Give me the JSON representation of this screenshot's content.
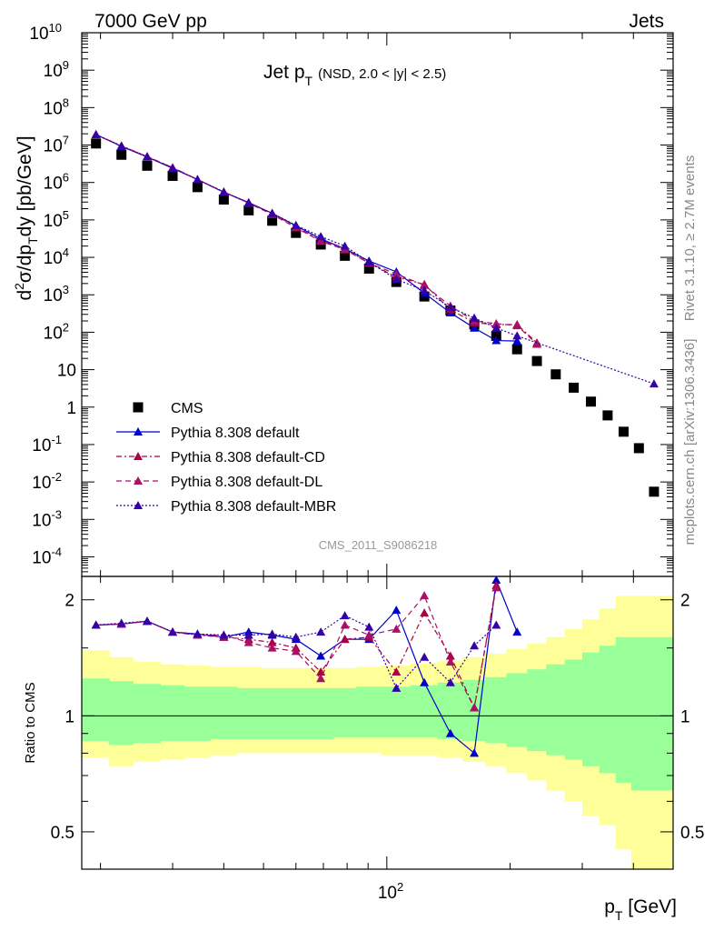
{
  "header": {
    "left": "7000 GeV pp",
    "right": "Jets"
  },
  "title": {
    "main": "Jet p",
    "sub": "T",
    "detail": "(NSD, 2.0 < |y| < 2.5)"
  },
  "side_labels": {
    "top": "Rivet 3.1.10, ≥ 2.7M events",
    "bottom": "mcplots.cern.ch [arXiv:1306.3436]"
  },
  "watermark": "CMS_2011_S9086218",
  "xlabel": {
    "main": "p",
    "sub": "T",
    "rest": " [GeV]"
  },
  "ylabel_main": {
    "d": "d",
    "sup": "2",
    "mid": "σ/dp",
    "sub": "T",
    "rest": "dy [pb/GeV]"
  },
  "ylabel_ratio": "Ratio to CMS",
  "legend": [
    {
      "label": "CMS",
      "color": "#000000",
      "marker": "square",
      "dash": "none"
    },
    {
      "label": "Pythia 8.308 default",
      "color": "#0000cc",
      "marker": "triangle",
      "dash": "solid"
    },
    {
      "label": "Pythia 8.308 default-CD",
      "color": "#aa0044",
      "marker": "triangle",
      "dash": "dashdot"
    },
    {
      "label": "Pythia 8.308 default-DL",
      "color": "#aa1166",
      "marker": "triangle",
      "dash": "dashed"
    },
    {
      "label": "Pythia 8.308 default-MBR",
      "color": "#3300aa",
      "marker": "triangle",
      "dash": "dotted"
    }
  ],
  "chart_data": {
    "type": "scatter",
    "xscale": "log",
    "xlim": [
      18,
      500
    ],
    "ylim_main": [
      3e-05,
      10000000000.0
    ],
    "ylim_ratio": [
      0.4,
      2.3
    ],
    "x_ticklabels": [
      "10^2"
    ],
    "main_ticklabels": [
      "10^-4",
      "10^-3",
      "10^-2",
      "10^-1",
      "1",
      "10",
      "10^2",
      "10^3",
      "10^4",
      "10^5",
      "10^6",
      "10^7",
      "10^8",
      "10^9",
      "10^10"
    ],
    "ratio_ticklabels": [
      "0.5",
      "1",
      "2"
    ],
    "bands": {
      "x_edges": [
        18,
        21,
        24,
        28,
        32,
        37,
        43,
        49,
        56,
        64,
        74,
        84,
        97,
        114,
        133,
        153,
        174,
        196,
        220,
        245,
        272,
        300,
        330,
        362,
        395,
        430,
        468,
        500
      ],
      "yellow_lo": [
        0.78,
        0.74,
        0.76,
        0.77,
        0.78,
        0.79,
        0.8,
        0.8,
        0.8,
        0.8,
        0.8,
        0.8,
        0.79,
        0.79,
        0.78,
        0.76,
        0.74,
        0.71,
        0.68,
        0.64,
        0.6,
        0.55,
        0.52,
        0.45,
        0.4,
        0.4,
        0.4
      ],
      "yellow_hi": [
        1.48,
        1.42,
        1.38,
        1.36,
        1.35,
        1.34,
        1.34,
        1.33,
        1.33,
        1.33,
        1.33,
        1.34,
        1.35,
        1.37,
        1.39,
        1.42,
        1.45,
        1.49,
        1.54,
        1.6,
        1.68,
        1.78,
        1.9,
        2.05,
        2.05,
        2.05,
        2.05
      ],
      "green_lo": [
        0.86,
        0.84,
        0.85,
        0.86,
        0.86,
        0.87,
        0.87,
        0.87,
        0.87,
        0.87,
        0.88,
        0.88,
        0.88,
        0.88,
        0.87,
        0.86,
        0.85,
        0.83,
        0.81,
        0.79,
        0.77,
        0.74,
        0.71,
        0.67,
        0.64,
        0.64,
        0.64
      ],
      "green_hi": [
        1.25,
        1.23,
        1.21,
        1.2,
        1.19,
        1.19,
        1.18,
        1.18,
        1.18,
        1.18,
        1.18,
        1.19,
        1.19,
        1.2,
        1.22,
        1.24,
        1.26,
        1.29,
        1.32,
        1.36,
        1.4,
        1.46,
        1.52,
        1.6,
        1.6,
        1.6,
        1.6
      ]
    },
    "series": [
      {
        "name": "CMS",
        "x": [
          19.5,
          22.5,
          26,
          30,
          34.5,
          40,
          46,
          52.5,
          60,
          69,
          79,
          90.5,
          105.5,
          123.5,
          143,
          163.5,
          185,
          208,
          232.5,
          258.5,
          286,
          315,
          346,
          378.5,
          412.5,
          449
        ],
        "y": [
          11000000.0,
          5500000.0,
          2800000.0,
          1500000.0,
          750000.0,
          350000.0,
          180000.0,
          95000.0,
          45000.0,
          22000.0,
          11000.0,
          5000.0,
          2200.0,
          900.0,
          380.0,
          160.0,
          80,
          35,
          17,
          7.5,
          3.3,
          1.4,
          0.6,
          0.22,
          0.08,
          0.0055
        ]
      },
      {
        "name": "Pythia 8.308 default",
        "x": [
          19.5,
          22.5,
          26,
          30,
          34.5,
          40,
          46,
          52.5,
          60,
          69,
          79,
          90.5,
          105.5,
          123.5,
          143,
          163.5,
          185,
          208
        ],
        "y": [
          19000000.0,
          9200000.0,
          4800000.0,
          2400000.0,
          1200000.0,
          550000.0,
          290000.0,
          150000.0,
          70000.0,
          31000.0,
          17000.0,
          8000.0,
          4100.0,
          1100.0,
          330.0,
          130.0,
          60,
          58
        ],
        "ratio": [
          1.72,
          1.73,
          1.76,
          1.65,
          1.63,
          1.6,
          1.65,
          1.62,
          1.58,
          1.43,
          1.58,
          1.58,
          1.88,
          1.22,
          0.9,
          0.8,
          2.25,
          1.65
        ]
      },
      {
        "name": "Pythia 8.308 default-CD",
        "x": [
          19.5,
          22.5,
          26,
          30,
          34.5,
          40,
          46,
          52.5,
          60,
          69,
          79,
          90.5,
          105.5,
          123.5,
          143,
          163.5,
          185,
          208,
          232.5
        ],
        "y": [
          19000000.0,
          9500000.0,
          4900000.0,
          2500000.0,
          1200000.0,
          560000.0,
          280000.0,
          150000.0,
          65000.0,
          28000.0,
          17000.0,
          7000.0,
          3000.0,
          1900.0,
          400.0,
          180.0,
          160.0,
          160.0,
          52
        ],
        "ratio": [
          1.72,
          1.73,
          1.76,
          1.65,
          1.62,
          1.6,
          1.58,
          1.55,
          1.5,
          1.3,
          1.58,
          1.6,
          1.3,
          1.85,
          1.43,
          1.05,
          2.18,
          null,
          null
        ]
      },
      {
        "name": "Pythia 8.308 default-DL",
        "x": [
          19.5,
          22.5,
          26,
          30,
          34.5,
          40,
          46,
          52.5,
          60,
          69,
          79,
          90.5,
          105.5,
          123.5,
          143,
          163.5,
          185,
          208,
          232.5
        ],
        "y": [
          19000000.0,
          9400000.0,
          4900000.0,
          2500000.0,
          1200000.0,
          560000.0,
          280000.0,
          140000.0,
          62000.0,
          27000.0,
          16000.0,
          7000.0,
          3600.0,
          1800.0,
          500.0,
          200.0,
          170.0,
          150.0,
          48
        ],
        "ratio": [
          1.72,
          1.73,
          1.76,
          1.65,
          1.62,
          1.62,
          1.55,
          1.5,
          1.47,
          1.25,
          1.72,
          1.62,
          1.68,
          2.05,
          1.38,
          1.05,
          2.15,
          null,
          null
        ]
      },
      {
        "name": "Pythia 8.308 default-MBR",
        "x": [
          19.5,
          22.5,
          26,
          30,
          34.5,
          40,
          46,
          52.5,
          60,
          69,
          79,
          90.5,
          105.5,
          123.5,
          143,
          163.5,
          185,
          208,
          449
        ],
        "y": [
          19000000.0,
          9500000.0,
          4900000.0,
          2400000.0,
          1200000.0,
          560000.0,
          290000.0,
          150000.0,
          72000.0,
          36000.0,
          20000.0,
          7500.0,
          2600.0,
          1300.0,
          460.0,
          240.0,
          130.0,
          80,
          4.2
        ],
        "ratio": [
          1.72,
          1.74,
          1.76,
          1.65,
          1.63,
          1.62,
          1.62,
          1.63,
          1.6,
          1.65,
          1.82,
          1.7,
          1.18,
          1.42,
          1.22,
          1.52,
          1.72,
          null,
          null
        ]
      }
    ]
  }
}
